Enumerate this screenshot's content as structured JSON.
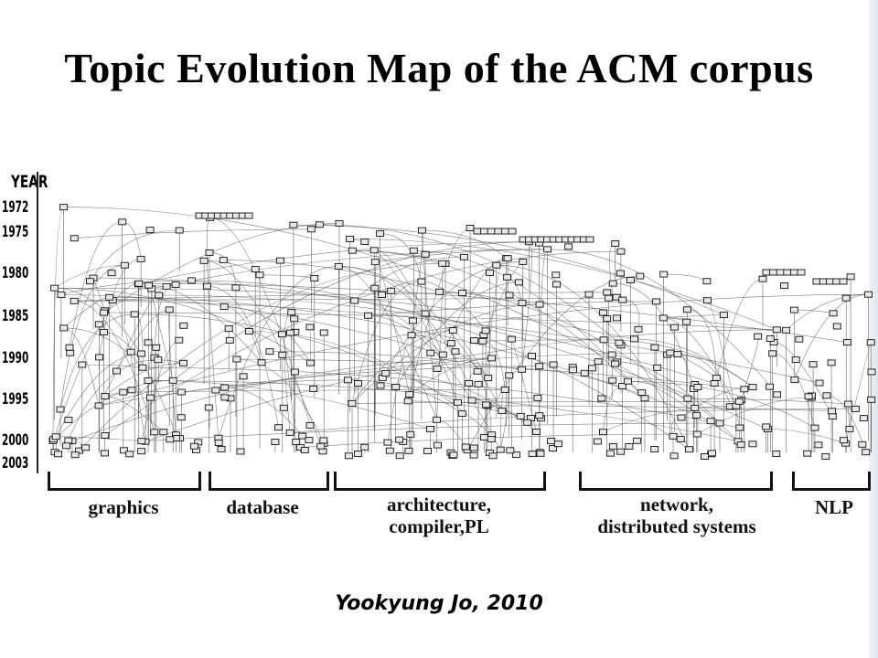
{
  "title": "Topic Evolution Map of the ACM corpus",
  "credit": "Yookyung Jo, 2010",
  "axis": {
    "header": "YEAR",
    "years": [
      "1972",
      "1975",
      "1980",
      "1985",
      "1990",
      "1995",
      "2000",
      "2003"
    ]
  },
  "categories": [
    {
      "label": "graphics"
    },
    {
      "label": "database"
    },
    {
      "label": "architecture,\ncompiler,PL"
    },
    {
      "label": "network,\ndistributed systems"
    },
    {
      "label": "NLP"
    }
  ]
}
